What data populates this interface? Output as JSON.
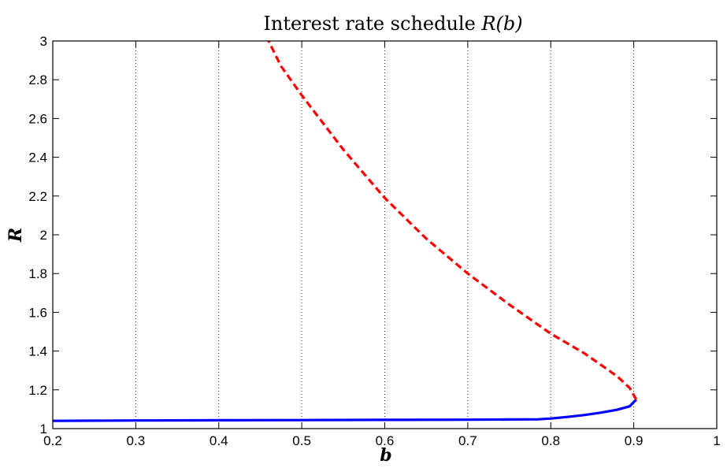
{
  "chart_data": {
    "type": "line",
    "title_prefix": "Interest rate schedule ",
    "title_math": "R(b)",
    "xlabel": "b",
    "ylabel": "R",
    "xlim": [
      0.2,
      1.0
    ],
    "ylim": [
      1.0,
      3.0
    ],
    "x_ticks": [
      "0.2",
      "0.3",
      "0.4",
      "0.5",
      "0.6",
      "0.7",
      "0.8",
      "0.9",
      "1"
    ],
    "y_ticks": [
      "1",
      "1.2",
      "1.4",
      "1.6",
      "1.8",
      "2",
      "2.2",
      "2.4",
      "2.6",
      "2.8",
      "3"
    ],
    "grid": "vertical dotted",
    "series": [
      {
        "style": "solid",
        "color": "#0000ff",
        "x": [
          0.2,
          0.3,
          0.4,
          0.5,
          0.6,
          0.7,
          0.75,
          0.785,
          0.8,
          0.82,
          0.84,
          0.86,
          0.88,
          0.895,
          0.903
        ],
        "y": [
          1.04,
          1.042,
          1.043,
          1.044,
          1.045,
          1.046,
          1.047,
          1.048,
          1.052,
          1.06,
          1.07,
          1.082,
          1.097,
          1.115,
          1.15
        ]
      },
      {
        "style": "dashed",
        "color": "#ff0000",
        "x": [
          0.903,
          0.895,
          0.88,
          0.86,
          0.84,
          0.82,
          0.8,
          0.75,
          0.7,
          0.65,
          0.6,
          0.55,
          0.5,
          0.475,
          0.46
        ],
        "y": [
          1.15,
          1.21,
          1.27,
          1.33,
          1.39,
          1.44,
          1.49,
          1.64,
          1.8,
          1.98,
          2.19,
          2.44,
          2.72,
          2.87,
          3.0
        ]
      }
    ]
  }
}
